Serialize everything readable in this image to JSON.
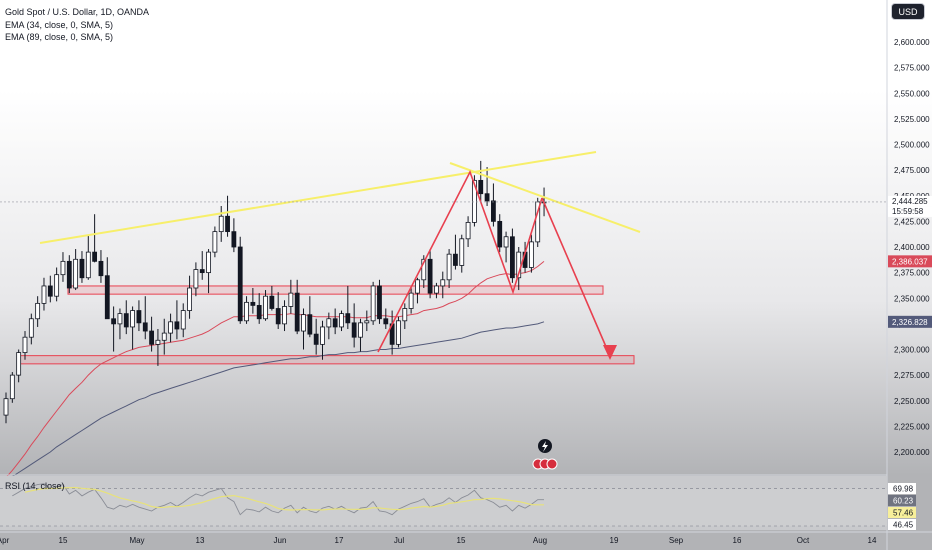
{
  "legend": {
    "symbol": "Gold Spot / U.S. Dollar, 1D, OANDA",
    "ema1": "EMA (34, close, 0, SMA, 5)",
    "ema2": "EMA (89, close, 0, SMA, 5)",
    "rsi": "RSI (14, close)"
  },
  "currency_button": "USD",
  "colors": {
    "up": "#ffffff",
    "down": "#131722",
    "ema34": "#d94a5a",
    "ema89": "#535a7a",
    "trendline": "#f7ef6a",
    "zone": "#e8404f",
    "arrow": "#e8404f",
    "rsi": "#e8e27a"
  },
  "price_badges": {
    "last_price": "2,444.285",
    "countdown": "15:59:58",
    "ema34_value": "2,386.037",
    "ema89_value": "2,326.828"
  },
  "rsi_badges": [
    "69.98",
    "60.23",
    "57.46",
    "46.45"
  ],
  "chart_data": {
    "type": "candlestick",
    "symbol": "XAUUSD",
    "timeframe": "1D",
    "y_axis": {
      "ticks": [
        "2,600.000",
        "2,575.000",
        "2,550.000",
        "2,525.000",
        "2,500.000",
        "2,475.000",
        "2,450.000",
        "2,425.000",
        "2,400.000",
        "2,375.000",
        "2,350.000",
        "2,325.000",
        "2,300.000",
        "2,275.000",
        "2,250.000",
        "2,225.000",
        "2,200.000"
      ],
      "range": [
        2180,
        2630
      ]
    },
    "x_axis": {
      "ticks": [
        "Apr",
        "15",
        "May",
        "13",
        "Jun",
        "17",
        "Jul",
        "15",
        "Aug",
        "19",
        "Sep",
        "16",
        "Oct",
        "14"
      ]
    },
    "candles": [
      [
        2236,
        2258,
        2228,
        2252
      ],
      [
        2252,
        2278,
        2248,
        2275
      ],
      [
        2275,
        2300,
        2268,
        2297
      ],
      [
        2297,
        2318,
        2290,
        2312
      ],
      [
        2312,
        2335,
        2305,
        2330
      ],
      [
        2330,
        2352,
        2322,
        2345
      ],
      [
        2345,
        2370,
        2338,
        2362
      ],
      [
        2362,
        2372,
        2346,
        2352
      ],
      [
        2352,
        2380,
        2347,
        2373
      ],
      [
        2373,
        2395,
        2366,
        2386
      ],
      [
        2386,
        2392,
        2355,
        2360
      ],
      [
        2360,
        2398,
        2358,
        2388
      ],
      [
        2388,
        2396,
        2365,
        2370
      ],
      [
        2370,
        2412,
        2368,
        2395
      ],
      [
        2395,
        2432,
        2385,
        2386
      ],
      [
        2386,
        2397,
        2365,
        2372
      ],
      [
        2372,
        2390,
        2330,
        2330
      ],
      [
        2330,
        2342,
        2298,
        2325
      ],
      [
        2325,
        2340,
        2310,
        2335
      ],
      [
        2335,
        2348,
        2315,
        2322
      ],
      [
        2322,
        2342,
        2300,
        2338
      ],
      [
        2338,
        2348,
        2318,
        2326
      ],
      [
        2326,
        2352,
        2310,
        2318
      ],
      [
        2318,
        2332,
        2298,
        2305
      ],
      [
        2305,
        2320,
        2284,
        2309
      ],
      [
        2309,
        2330,
        2295,
        2316
      ],
      [
        2316,
        2335,
        2307,
        2327
      ],
      [
        2327,
        2348,
        2310,
        2320
      ],
      [
        2320,
        2345,
        2312,
        2338
      ],
      [
        2338,
        2372,
        2330,
        2360
      ],
      [
        2360,
        2385,
        2352,
        2378
      ],
      [
        2378,
        2396,
        2368,
        2375
      ],
      [
        2375,
        2398,
        2355,
        2395
      ],
      [
        2395,
        2420,
        2390,
        2415
      ],
      [
        2415,
        2440,
        2405,
        2430
      ],
      [
        2430,
        2450,
        2410,
        2415
      ],
      [
        2415,
        2428,
        2395,
        2400
      ],
      [
        2400,
        2410,
        2325,
        2328
      ],
      [
        2328,
        2352,
        2325,
        2346
      ],
      [
        2346,
        2360,
        2335,
        2343
      ],
      [
        2343,
        2355,
        2325,
        2330
      ],
      [
        2330,
        2358,
        2328,
        2352
      ],
      [
        2352,
        2362,
        2338,
        2340
      ],
      [
        2340,
        2356,
        2320,
        2325
      ],
      [
        2325,
        2348,
        2318,
        2342
      ],
      [
        2342,
        2368,
        2335,
        2355
      ],
      [
        2355,
        2368,
        2315,
        2318
      ],
      [
        2318,
        2340,
        2300,
        2334
      ],
      [
        2334,
        2352,
        2312,
        2315
      ],
      [
        2315,
        2330,
        2295,
        2305
      ],
      [
        2305,
        2328,
        2290,
        2322
      ],
      [
        2322,
        2336,
        2310,
        2330
      ],
      [
        2330,
        2340,
        2315,
        2322
      ],
      [
        2322,
        2338,
        2318,
        2335
      ],
      [
        2335,
        2362,
        2320,
        2326
      ],
      [
        2326,
        2345,
        2302,
        2312
      ],
      [
        2312,
        2330,
        2298,
        2326
      ],
      [
        2326,
        2338,
        2318,
        2328
      ],
      [
        2328,
        2366,
        2324,
        2362
      ],
      [
        2362,
        2368,
        2325,
        2330
      ],
      [
        2330,
        2340,
        2320,
        2325
      ],
      [
        2325,
        2338,
        2295,
        2305
      ],
      [
        2305,
        2332,
        2302,
        2328
      ],
      [
        2328,
        2345,
        2320,
        2340
      ],
      [
        2340,
        2360,
        2335,
        2355
      ],
      [
        2355,
        2370,
        2345,
        2368
      ],
      [
        2368,
        2392,
        2360,
        2388
      ],
      [
        2388,
        2398,
        2350,
        2355
      ],
      [
        2355,
        2365,
        2350,
        2362
      ],
      [
        2362,
        2376,
        2350,
        2368
      ],
      [
        2368,
        2398,
        2360,
        2393
      ],
      [
        2393,
        2412,
        2378,
        2382
      ],
      [
        2382,
        2412,
        2375,
        2408
      ],
      [
        2408,
        2430,
        2400,
        2424
      ],
      [
        2424,
        2470,
        2420,
        2465
      ],
      [
        2465,
        2484,
        2445,
        2452
      ],
      [
        2452,
        2478,
        2440,
        2445
      ],
      [
        2445,
        2462,
        2420,
        2425
      ],
      [
        2425,
        2432,
        2395,
        2400
      ],
      [
        2400,
        2415,
        2385,
        2410
      ],
      [
        2410,
        2418,
        2365,
        2370
      ],
      [
        2370,
        2400,
        2358,
        2395
      ],
      [
        2395,
        2405,
        2375,
        2380
      ],
      [
        2380,
        2412,
        2375,
        2405
      ],
      [
        2405,
        2448,
        2400,
        2444
      ],
      [
        2444,
        2458,
        2430,
        2444
      ]
    ],
    "ema34": [
      2175,
      2182,
      2190,
      2198,
      2207,
      2215,
      2224,
      2232,
      2240,
      2248,
      2256,
      2262,
      2268,
      2275,
      2281,
      2286,
      2289,
      2292,
      2295,
      2298,
      2300,
      2302,
      2303,
      2304,
      2305,
      2306,
      2307,
      2308,
      2309,
      2311,
      2313,
      2315,
      2318,
      2322,
      2326,
      2329,
      2332,
      2332,
      2333,
      2333,
      2333,
      2334,
      2334,
      2334,
      2334,
      2335,
      2334,
      2334,
      2333,
      2332,
      2332,
      2332,
      2332,
      2332,
      2332,
      2331,
      2331,
      2331,
      2333,
      2333,
      2333,
      2332,
      2332,
      2333,
      2334,
      2335,
      2338,
      2339,
      2340,
      2342,
      2345,
      2347,
      2350,
      2354,
      2360,
      2365,
      2369,
      2371,
      2373,
      2374,
      2373,
      2374,
      2375,
      2377,
      2381,
      2386
    ],
    "ema89": [
      2172,
      2176,
      2180,
      2184,
      2188,
      2192,
      2196,
      2200,
      2205,
      2209,
      2213,
      2217,
      2221,
      2225,
      2229,
      2233,
      2236,
      2239,
      2242,
      2245,
      2248,
      2251,
      2253,
      2256,
      2258,
      2260,
      2262,
      2264,
      2266,
      2268,
      2270,
      2272,
      2274,
      2276,
      2278,
      2280,
      2282,
      2283,
      2284,
      2285,
      2286,
      2287,
      2288,
      2289,
      2290,
      2291,
      2291,
      2292,
      2293,
      2293,
      2294,
      2295,
      2295,
      2296,
      2297,
      2297,
      2298,
      2298,
      2299,
      2300,
      2300,
      2301,
      2301,
      2302,
      2303,
      2304,
      2305,
      2306,
      2307,
      2308,
      2309,
      2310,
      2311,
      2313,
      2315,
      2317,
      2318,
      2319,
      2320,
      2321,
      2321,
      2322,
      2323,
      2324,
      2325,
      2327
    ],
    "rsi": [
      null,
      62,
      66,
      70,
      72,
      74,
      75,
      70,
      72,
      74,
      64,
      68,
      62,
      66,
      69,
      60,
      50,
      48,
      52,
      50,
      53,
      50,
      48,
      46,
      50,
      52,
      55,
      51,
      55,
      60,
      64,
      62,
      66,
      68,
      70,
      60,
      56,
      42,
      48,
      47,
      45,
      50,
      46,
      44,
      49,
      52,
      44,
      50,
      46,
      44,
      49,
      51,
      48,
      51,
      47,
      44,
      49,
      50,
      56,
      46,
      45,
      42,
      48,
      51,
      54,
      56,
      59,
      50,
      53,
      55,
      60,
      55,
      60,
      63,
      68,
      60,
      58,
      55,
      50,
      52,
      46,
      52,
      49,
      53,
      58,
      58
    ]
  },
  "annotations": {
    "upper_trendline": "resistance",
    "zones": [
      "resistance-zone-2360",
      "support-zone-2290"
    ]
  }
}
